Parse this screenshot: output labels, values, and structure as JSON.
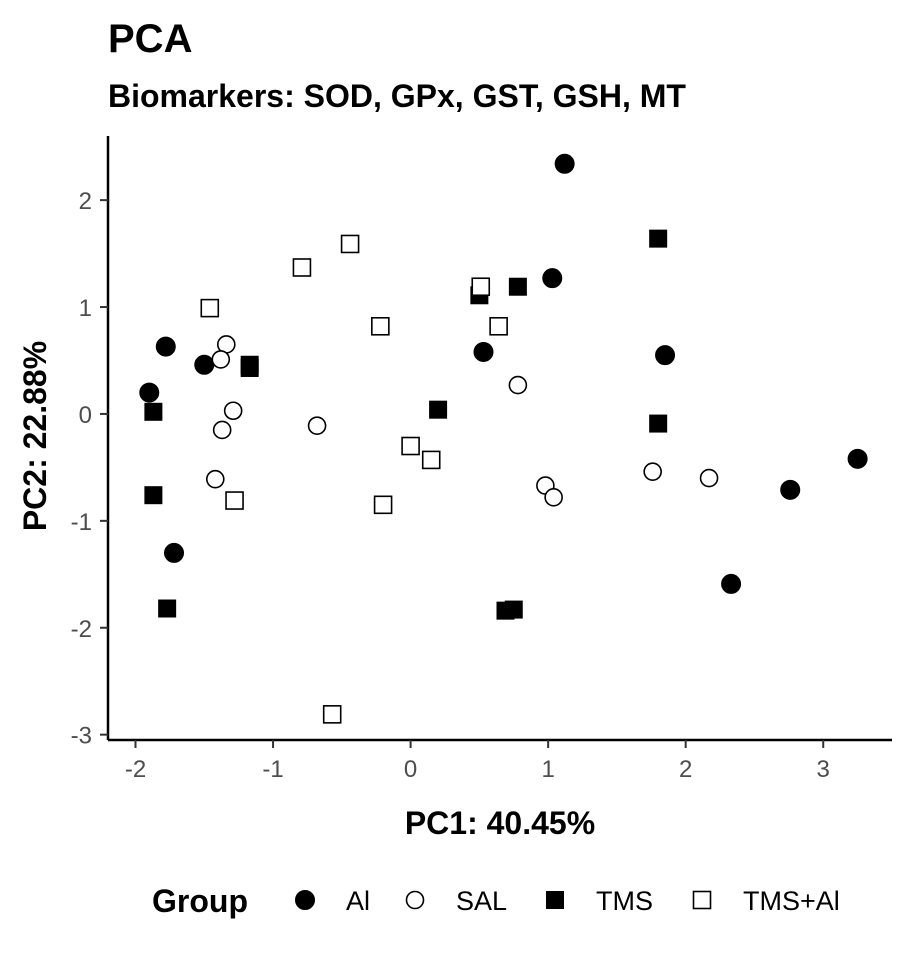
{
  "chart_data": {
    "type": "scatter",
    "title": "PCA",
    "subtitle": "Biomarkers: SOD, GPx, GST, GSH, MT",
    "xlabel": "PC1: 40.45%",
    "ylabel": "PC2: 22.88%",
    "xlim": [
      -2.2,
      3.5
    ],
    "ylim": [
      -3.05,
      2.6
    ],
    "x_ticks": [
      -2,
      -1,
      0,
      1,
      2,
      3
    ],
    "y_ticks": [
      -3,
      -2,
      -1,
      0,
      1,
      2
    ],
    "grid": false,
    "legend": {
      "title": "Group",
      "position": "bottom"
    },
    "series": [
      {
        "name": "Al",
        "marker": "filled-circle",
        "color": "#000000",
        "points": [
          [
            1.12,
            2.34
          ],
          [
            1.03,
            1.27
          ],
          [
            1.85,
            0.55
          ],
          [
            0.53,
            0.58
          ],
          [
            -1.78,
            0.63
          ],
          [
            -1.5,
            0.46
          ],
          [
            -1.9,
            0.2
          ],
          [
            -1.72,
            -1.3
          ],
          [
            2.33,
            -1.59
          ],
          [
            2.76,
            -0.71
          ],
          [
            3.25,
            -0.42
          ]
        ]
      },
      {
        "name": "SAL",
        "marker": "open-circle",
        "color": "#000000",
        "points": [
          [
            -1.34,
            0.65
          ],
          [
            -1.38,
            0.51
          ],
          [
            -1.29,
            0.03
          ],
          [
            -1.37,
            -0.15
          ],
          [
            -1.42,
            -0.61
          ],
          [
            -0.68,
            -0.11
          ],
          [
            0.78,
            0.27
          ],
          [
            0.98,
            -0.67
          ],
          [
            1.04,
            -0.78
          ],
          [
            1.76,
            -0.54
          ],
          [
            2.17,
            -0.6
          ]
        ]
      },
      {
        "name": "TMS",
        "marker": "filled-square",
        "color": "#000000",
        "points": [
          [
            1.8,
            1.64
          ],
          [
            0.78,
            1.19
          ],
          [
            0.5,
            1.11
          ],
          [
            -1.17,
            0.46
          ],
          [
            -1.17,
            0.43
          ],
          [
            -1.87,
            0.02
          ],
          [
            0.2,
            0.04
          ],
          [
            1.8,
            -0.09
          ],
          [
            -1.87,
            -0.76
          ],
          [
            -1.77,
            -1.82
          ],
          [
            0.69,
            -1.84
          ],
          [
            0.75,
            -1.83
          ]
        ]
      },
      {
        "name": "TMS+Al",
        "marker": "open-square",
        "color": "#000000",
        "points": [
          [
            -0.44,
            1.59
          ],
          [
            -0.79,
            1.37
          ],
          [
            0.51,
            1.19
          ],
          [
            0.64,
            0.82
          ],
          [
            -0.22,
            0.82
          ],
          [
            -1.46,
            0.99
          ],
          [
            0.0,
            -0.3
          ],
          [
            0.15,
            -0.43
          ],
          [
            -1.28,
            -0.81
          ],
          [
            -0.2,
            -0.85
          ],
          [
            -0.57,
            -2.81
          ]
        ]
      }
    ]
  }
}
